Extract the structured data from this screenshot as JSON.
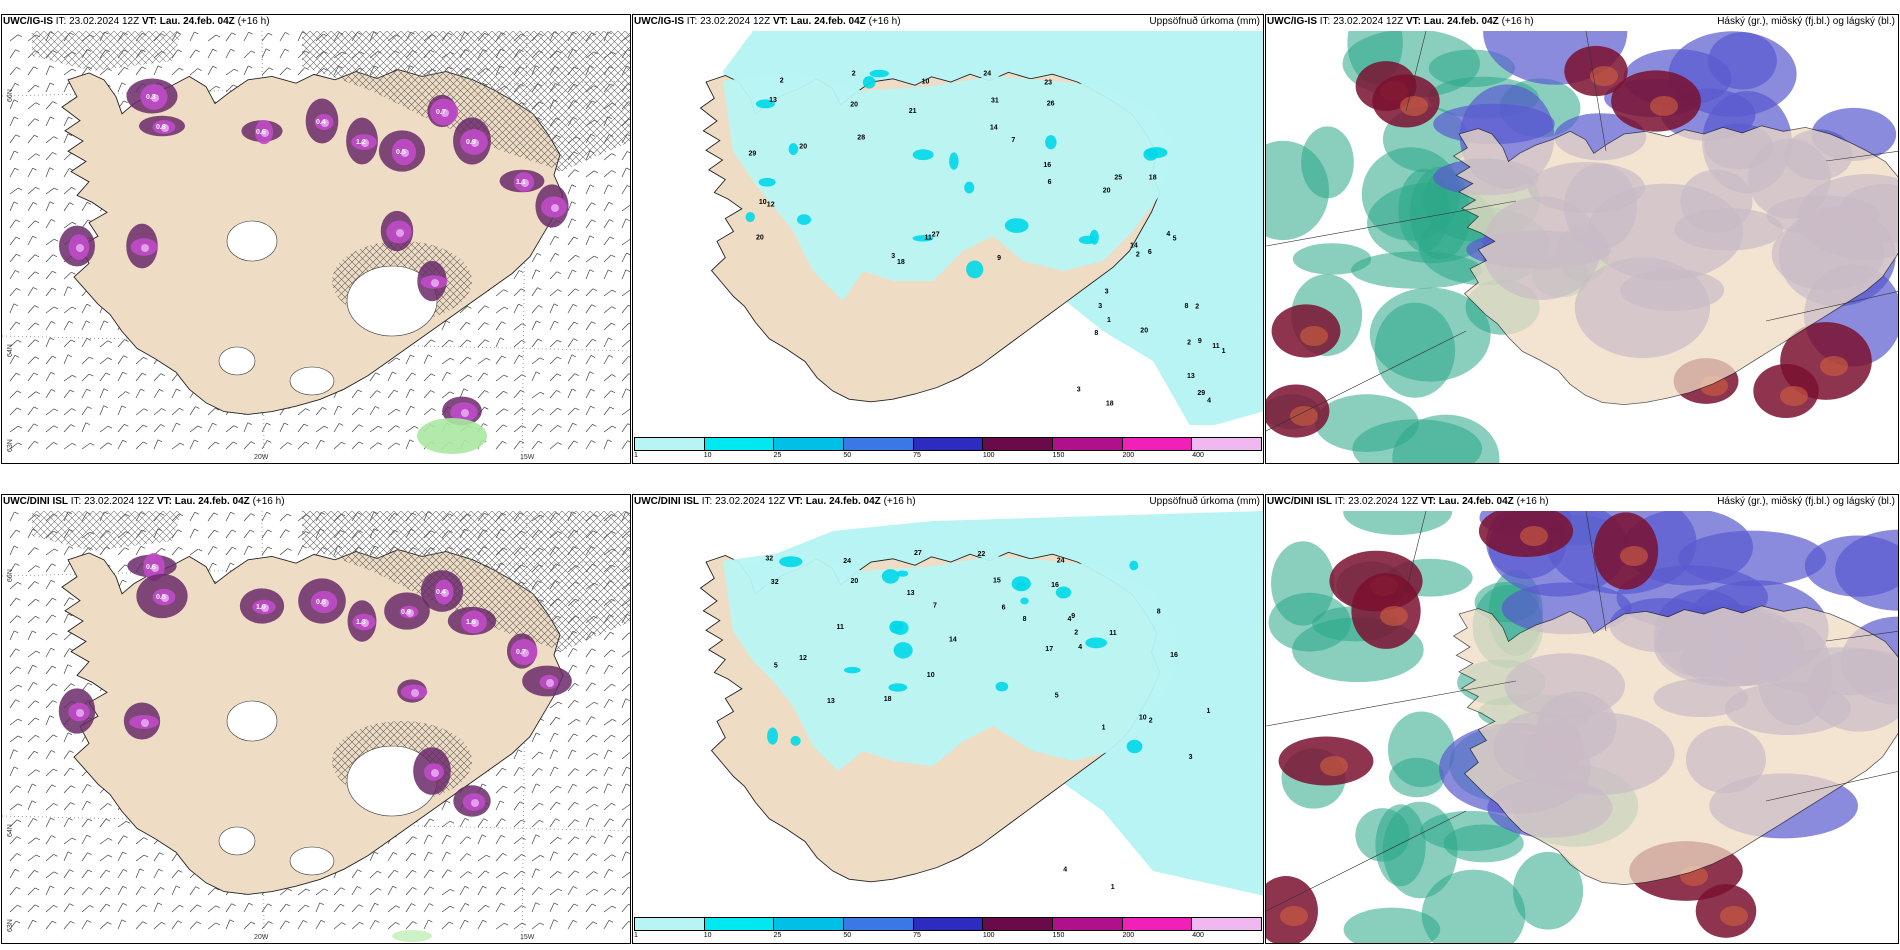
{
  "rows": [
    {
      "model": "UWC/IG-IS",
      "it_label": "IT:",
      "it_value": "23.02.2024 12Z",
      "vt_label": "VT:",
      "vt_value": "Lau. 24.feb. 04Z",
      "lead": "(+16 h)",
      "precip_title": "Uppsöfnuð úrkoma (mm)",
      "cloud_title": "Háský (gr.), miðský (fj.bl.) og lágský (bl.)",
      "snow_values": [
        "0.3",
        "0.8",
        "0.6",
        "0.4",
        "1.2",
        "0.5",
        "0.7",
        "0.9",
        "1.1"
      ],
      "precip_values": [
        "2",
        "2",
        "10",
        "24",
        "23",
        "13",
        "20",
        "21",
        "31",
        "26",
        "18",
        "29",
        "20",
        "18",
        "20",
        "20",
        "14",
        "28",
        "27",
        "25",
        "10",
        "12",
        "9",
        "6",
        "3",
        "11",
        "14",
        "7",
        "16",
        "5",
        "8",
        "13",
        "18",
        "20",
        "11",
        "29",
        "8",
        "2",
        "4",
        "1",
        "9",
        "2",
        "6",
        "3",
        "1",
        "2",
        "3",
        "4",
        "3"
      ]
    },
    {
      "model": "UWC/DINI ISL",
      "it_label": "IT:",
      "it_value": "23.02.2024 12Z",
      "vt_label": "VT:",
      "vt_value": "Lau. 24.feb. 04Z",
      "lead": "(+16 h)",
      "precip_title": "Uppsöfnuð úrkoma (mm)",
      "cloud_title": "Háský (gr.), miðský (fj.bl.) og lágský (bl.)",
      "snow_values": [
        "0.6",
        "0.5",
        "1.0",
        "0.8",
        "1.3",
        "0.9",
        "0.4",
        "1.6",
        "0.7"
      ],
      "precip_values": [
        "32",
        "24",
        "27",
        "22",
        "24",
        "32",
        "20",
        "13",
        "15",
        "16",
        "18",
        "17",
        "12",
        "14",
        "11",
        "10",
        "8",
        "9",
        "6",
        "5",
        "4",
        "16",
        "13",
        "11",
        "10",
        "8",
        "7",
        "5",
        "4",
        "2",
        "3",
        "1",
        "2",
        "1",
        "1",
        "4"
      ]
    }
  ],
  "legend": {
    "ticks": [
      "1",
      "10",
      "25",
      "50",
      "75",
      "100",
      "150",
      "200",
      "400"
    ],
    "colors": [
      "#b8f4f4",
      "#00e8f0",
      "#00c0e8",
      "#3a78e8",
      "#2c2cc0",
      "#6a0a4a",
      "#b0108a",
      "#f020b8",
      "#f0b8f0"
    ]
  },
  "axis": {
    "lon_left": "20W",
    "lon_right": "15W",
    "lat_top": "66N",
    "lat_mid": "64N",
    "lat_bot": "63N"
  },
  "colors": {
    "land": "#efdcc4",
    "precip_light": "#b8f4f4",
    "cloud_high": "#7a1030",
    "cloud_mid": "#5a5ad0",
    "cloud_low": "#2aa888"
  }
}
